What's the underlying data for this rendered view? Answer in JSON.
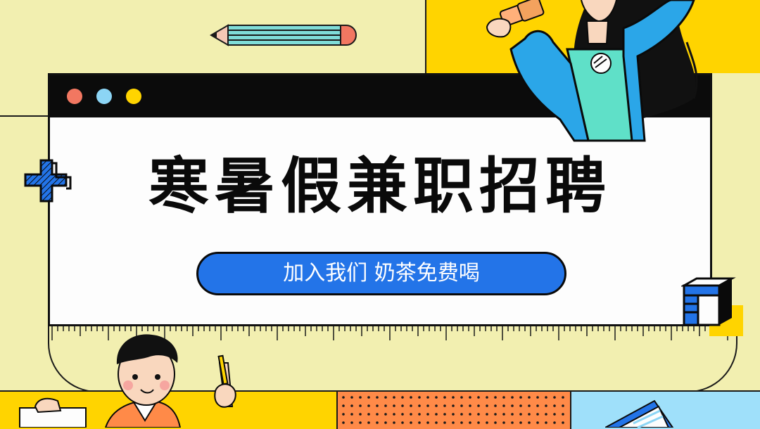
{
  "window": {
    "title": "寒暑假兼职招聘",
    "subtitle": "加入我们 奶茶免费喝"
  },
  "colors": {
    "bg": "#F2EFB0",
    "yellow": "#FFD400",
    "blue": "#2374E8",
    "orange": "#FF8A48",
    "light_blue": "#9FE0FA",
    "dot_red": "#F27761",
    "dot_blue": "#8CD5F5"
  }
}
